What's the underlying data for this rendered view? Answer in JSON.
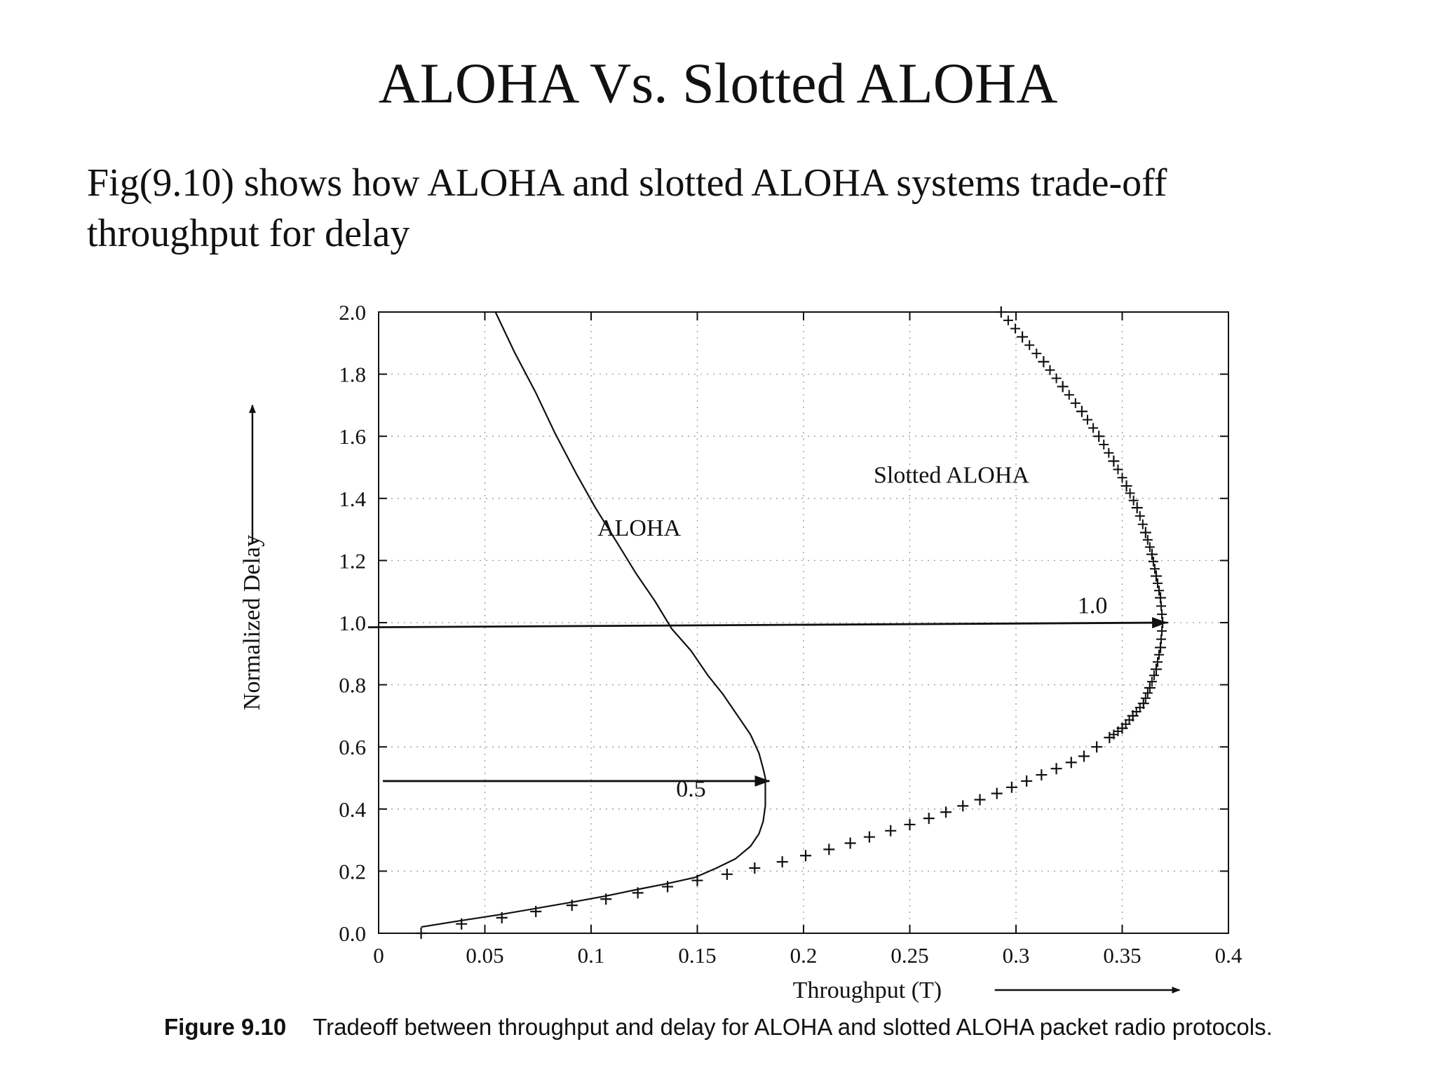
{
  "slide": {
    "title": "ALOHA Vs. Slotted ALOHA",
    "intro_line1": "Fig(9.10) shows how ALOHA  and slotted ALOHA systems trade-off",
    "intro_line2": "throughput for delay"
  },
  "caption": {
    "figure_number": "Figure 9.10",
    "text": "Tradeoff between throughput and delay for ALOHA and slotted ALOHA packet radio protocols."
  },
  "chart_data": {
    "type": "line",
    "xlabel": "Throughput (T)",
    "ylabel": "Normalized Delay",
    "xlim": [
      0,
      0.4
    ],
    "ylim": [
      0,
      2.0
    ],
    "x_ticks": [
      "0",
      "0.05",
      "0.1",
      "0.15",
      "0.2",
      "0.25",
      "0.3",
      "0.35",
      "0.4"
    ],
    "y_ticks": [
      "0.0",
      "0.2",
      "0.4",
      "0.6",
      "0.8",
      "1.0",
      "1.2",
      "1.4",
      "1.6",
      "1.8",
      "2.0"
    ],
    "grid": true,
    "series": [
      {
        "name": "ALOHA",
        "style": "solid-line",
        "points": [
          [
            0.02,
            0.02
          ],
          [
            0.038,
            0.04
          ],
          [
            0.057,
            0.06
          ],
          [
            0.074,
            0.08
          ],
          [
            0.091,
            0.1
          ],
          [
            0.107,
            0.12
          ],
          [
            0.121,
            0.14
          ],
          [
            0.136,
            0.16
          ],
          [
            0.149,
            0.18
          ],
          [
            0.159,
            0.21
          ],
          [
            0.168,
            0.24
          ],
          [
            0.175,
            0.28
          ],
          [
            0.179,
            0.32
          ],
          [
            0.181,
            0.36
          ],
          [
            0.182,
            0.41
          ],
          [
            0.182,
            0.46
          ],
          [
            0.182,
            0.5
          ],
          [
            0.181,
            0.53
          ],
          [
            0.179,
            0.58
          ],
          [
            0.175,
            0.64
          ],
          [
            0.169,
            0.7
          ],
          [
            0.162,
            0.77
          ],
          [
            0.155,
            0.83
          ],
          [
            0.147,
            0.91
          ],
          [
            0.138,
            0.98
          ],
          [
            0.13,
            1.07
          ],
          [
            0.121,
            1.16
          ],
          [
            0.112,
            1.26
          ],
          [
            0.102,
            1.37
          ],
          [
            0.093,
            1.48
          ],
          [
            0.083,
            1.61
          ],
          [
            0.074,
            1.74
          ],
          [
            0.064,
            1.87
          ],
          [
            0.055,
            2.0
          ]
        ]
      },
      {
        "name": "Slotted ALOHA",
        "style": "plus-markers",
        "points": [
          [
            0.02,
            0.0
          ],
          [
            0.039,
            0.03
          ],
          [
            0.058,
            0.05
          ],
          [
            0.074,
            0.07
          ],
          [
            0.091,
            0.09
          ],
          [
            0.107,
            0.11
          ],
          [
            0.122,
            0.13
          ],
          [
            0.136,
            0.15
          ],
          [
            0.15,
            0.17
          ],
          [
            0.164,
            0.19
          ],
          [
            0.177,
            0.21
          ],
          [
            0.19,
            0.23
          ],
          [
            0.201,
            0.25
          ],
          [
            0.212,
            0.27
          ],
          [
            0.222,
            0.29
          ],
          [
            0.231,
            0.31
          ],
          [
            0.241,
            0.33
          ],
          [
            0.25,
            0.35
          ],
          [
            0.259,
            0.37
          ],
          [
            0.267,
            0.39
          ],
          [
            0.275,
            0.41
          ],
          [
            0.283,
            0.43
          ],
          [
            0.291,
            0.45
          ],
          [
            0.298,
            0.47
          ],
          [
            0.305,
            0.49
          ],
          [
            0.312,
            0.51
          ],
          [
            0.319,
            0.53
          ],
          [
            0.326,
            0.55
          ],
          [
            0.332,
            0.57
          ],
          [
            0.338,
            0.6
          ],
          [
            0.344,
            0.63
          ],
          [
            0.35,
            0.66
          ],
          [
            0.355,
            0.7
          ],
          [
            0.36,
            0.74
          ],
          [
            0.363,
            0.79
          ],
          [
            0.366,
            0.85
          ],
          [
            0.368,
            0.92
          ],
          [
            0.369,
            1.0
          ],
          [
            0.368,
            1.08
          ],
          [
            0.366,
            1.15
          ],
          [
            0.364,
            1.22
          ],
          [
            0.361,
            1.29
          ],
          [
            0.357,
            1.37
          ],
          [
            0.352,
            1.44
          ],
          [
            0.346,
            1.52
          ],
          [
            0.339,
            1.6
          ],
          [
            0.331,
            1.68
          ],
          [
            0.322,
            1.76
          ],
          [
            0.313,
            1.84
          ],
          [
            0.303,
            1.92
          ],
          [
            0.293,
            2.0
          ]
        ]
      }
    ],
    "annotations": [
      {
        "text": "ALOHA",
        "x": 0.103,
        "y": 1.28
      },
      {
        "text": "Slotted ALOHA",
        "x": 0.233,
        "y": 1.45
      },
      {
        "text": "0.5",
        "x": 0.14,
        "y": 0.44,
        "arrow_from": [
          0.002,
          0.49
        ],
        "arrow_to": [
          0.182,
          0.49
        ]
      },
      {
        "text": "1.0",
        "x": 0.329,
        "y": 1.03,
        "arrow_from": [
          -0.005,
          0.985
        ],
        "arrow_to": [
          0.369,
          1.0
        ]
      }
    ]
  }
}
